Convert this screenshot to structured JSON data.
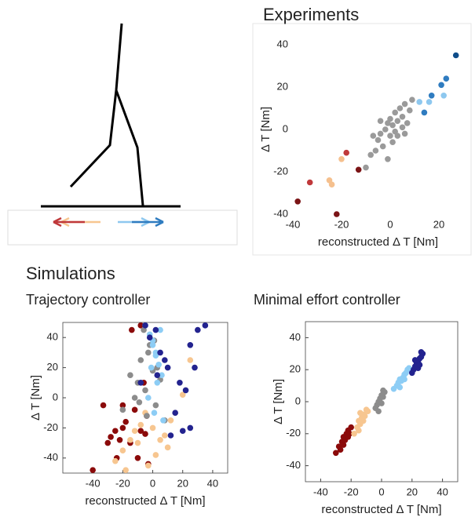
{
  "section_heading": "Simulations",
  "chart_data": [
    {
      "type": "scatter",
      "title": "Experiments",
      "xlabel": "reconstructed Δ T [Nm]",
      "ylabel": "Δ T [Nm]",
      "xlim": [
        -40,
        30
      ],
      "ylim": [
        -40,
        40
      ],
      "xticks": [
        -40,
        -20,
        0,
        20
      ],
      "yticks": [
        -40,
        -20,
        0,
        20,
        40
      ],
      "series": [
        {
          "color": "#7b1416",
          "x": [
            -38,
            -22,
            -13
          ],
          "values": [
            -34,
            -40,
            -19
          ]
        },
        {
          "color": "#c0393b",
          "x": [
            -33,
            -18
          ],
          "values": [
            -25,
            -11
          ]
        },
        {
          "color": "#f5c08e",
          "x": [
            -20,
            -25,
            -24
          ],
          "values": [
            -14,
            -24,
            -26
          ]
        },
        {
          "color": "#9a9a9a",
          "x": [
            -10,
            -8,
            -6,
            -5,
            -4,
            -3,
            -2,
            -1,
            0,
            0,
            1,
            2,
            2,
            3,
            4,
            5,
            5,
            6,
            7,
            8,
            -7,
            -4,
            1,
            3,
            9,
            -1,
            6
          ],
          "values": [
            -18,
            -12,
            -10,
            -5,
            -2,
            -8,
            0,
            3,
            -3,
            5,
            2,
            -1,
            8,
            4,
            10,
            1,
            6,
            12,
            3,
            9,
            -3,
            4,
            -6,
            -3,
            14,
            -14,
            -2
          ]
        },
        {
          "color": "#8ec8ef",
          "x": [
            12,
            16,
            22
          ],
          "values": [
            13,
            13,
            16
          ]
        },
        {
          "color": "#2f7cc0",
          "x": [
            17,
            21,
            23,
            14
          ],
          "values": [
            16,
            21,
            24,
            8
          ]
        },
        {
          "color": "#0f4d8a",
          "x": [
            27
          ],
          "values": [
            35
          ]
        }
      ]
    },
    {
      "type": "scatter",
      "title": "Trajectory controller",
      "xlabel": "reconstructed Δ T [Nm]",
      "ylabel": "Δ T [Nm]",
      "xlim": [
        -60,
        50
      ],
      "ylim": [
        -50,
        50
      ],
      "xticks": [
        -40,
        -20,
        0,
        20,
        40
      ],
      "yticks": [
        -40,
        -20,
        0,
        20,
        40
      ],
      "series": [
        {
          "color": "#8b0a0a",
          "x": [
            -40,
            -30,
            -28,
            -25,
            -20,
            -22,
            -18,
            -15,
            -12,
            -10,
            -8,
            -5,
            -3,
            -20,
            -14,
            -33,
            -8,
            -6,
            -4,
            -24
          ],
          "values": [
            -48,
            -30,
            -26,
            -22,
            -20,
            -28,
            -16,
            -30,
            -8,
            -40,
            -22,
            -24,
            -44,
            -5,
            45,
            -5,
            48,
            10,
            -12,
            -40
          ]
        },
        {
          "color": "#f7c690",
          "x": [
            -25,
            -20,
            -15,
            -10,
            -8,
            -5,
            0,
            5,
            10,
            15,
            20,
            -12,
            2,
            8,
            25,
            -3,
            12,
            -18
          ],
          "values": [
            -42,
            -35,
            -28,
            -30,
            -18,
            -10,
            -20,
            -28,
            -33,
            -10,
            2,
            -22,
            -38,
            -25,
            25,
            -45,
            -15,
            -48
          ]
        },
        {
          "color": "#8c8c8c",
          "x": [
            -15,
            -10,
            -8,
            -5,
            -3,
            0,
            2,
            5,
            -12,
            -6,
            -2,
            3,
            -20,
            8,
            -9,
            -4,
            1
          ],
          "values": [
            15,
            10,
            25,
            5,
            30,
            18,
            -5,
            12,
            0,
            45,
            35,
            20,
            -8,
            -15,
            -3,
            -12,
            38
          ]
        },
        {
          "color": "#8dcdf5",
          "x": [
            -5,
            -2,
            0,
            2,
            4,
            6,
            -3,
            1,
            3,
            5,
            -1,
            7,
            0,
            2
          ],
          "values": [
            48,
            42,
            35,
            28,
            22,
            15,
            0,
            -10,
            10,
            45,
            20,
            -15,
            38,
            30
          ]
        },
        {
          "color": "#23238f",
          "x": [
            -5,
            -2,
            2,
            5,
            8,
            10,
            15,
            18,
            20,
            25,
            28,
            35,
            30,
            22,
            12,
            -8,
            3,
            25
          ],
          "values": [
            48,
            40,
            45,
            30,
            25,
            20,
            -10,
            10,
            -22,
            35,
            20,
            48,
            45,
            5,
            -25,
            10,
            15,
            -20
          ]
        }
      ]
    },
    {
      "type": "scatter",
      "title": "Minimal effort controller",
      "xlabel": "reconstructed Δ T [Nm]",
      "ylabel": "Δ T [Nm]",
      "xlim": [
        -50,
        50
      ],
      "ylim": [
        -50,
        50
      ],
      "xticks": [
        -40,
        -20,
        0,
        20,
        40
      ],
      "yticks": [
        -40,
        -20,
        0,
        20,
        40
      ],
      "series": [
        {
          "color": "#8b0a0a",
          "x": [
            -30,
            -28,
            -26,
            -25,
            -24,
            -23,
            -22,
            -21,
            -20,
            -25,
            -27,
            -22
          ],
          "values": [
            -32,
            -28,
            -25,
            -22,
            -24,
            -20,
            -18,
            -20,
            -16,
            -27,
            -30,
            -22
          ]
        },
        {
          "color": "#f7c690",
          "x": [
            -18,
            -16,
            -15,
            -14,
            -13,
            -12,
            -11,
            -10,
            -9,
            -15,
            -12,
            -14
          ],
          "values": [
            -20,
            -16,
            -12,
            -14,
            -10,
            -8,
            -9,
            -5,
            -6,
            -18,
            -12,
            -7
          ]
        },
        {
          "color": "#8c8c8c",
          "x": [
            -4,
            -3,
            -2,
            -1,
            0,
            1,
            2,
            -2,
            0,
            1
          ],
          "values": [
            -4,
            -2,
            0,
            2,
            4,
            3,
            6,
            -6,
            -1,
            7
          ]
        },
        {
          "color": "#8dcdf5",
          "x": [
            8,
            10,
            11,
            12,
            13,
            14,
            15,
            16,
            17,
            18,
            12,
            15
          ],
          "values": [
            8,
            10,
            12,
            14,
            13,
            15,
            17,
            18,
            20,
            21,
            9,
            14
          ]
        },
        {
          "color": "#23238f",
          "x": [
            20,
            21,
            22,
            23,
            24,
            25,
            26,
            27,
            24,
            26,
            22,
            25
          ],
          "values": [
            18,
            20,
            22,
            24,
            25,
            27,
            28,
            30,
            21,
            31,
            26,
            23
          ]
        }
      ]
    }
  ]
}
